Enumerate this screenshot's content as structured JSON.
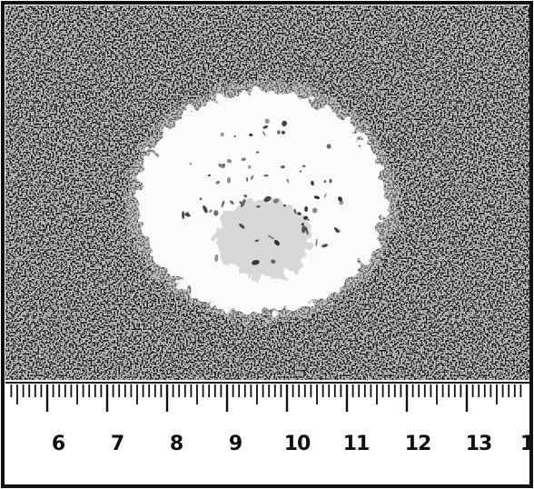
{
  "photo": {
    "subject": "white fuzzy specimen photographed against a dark speckled background",
    "background_color": "#1a1a1a",
    "speckle_color": "#f2f2f2"
  },
  "ruler": {
    "labels": [
      "6",
      "7",
      "8",
      "9",
      "10",
      "11",
      "12",
      "13",
      "1"
    ],
    "color": "#ffffff",
    "tick_color": "#111111"
  }
}
